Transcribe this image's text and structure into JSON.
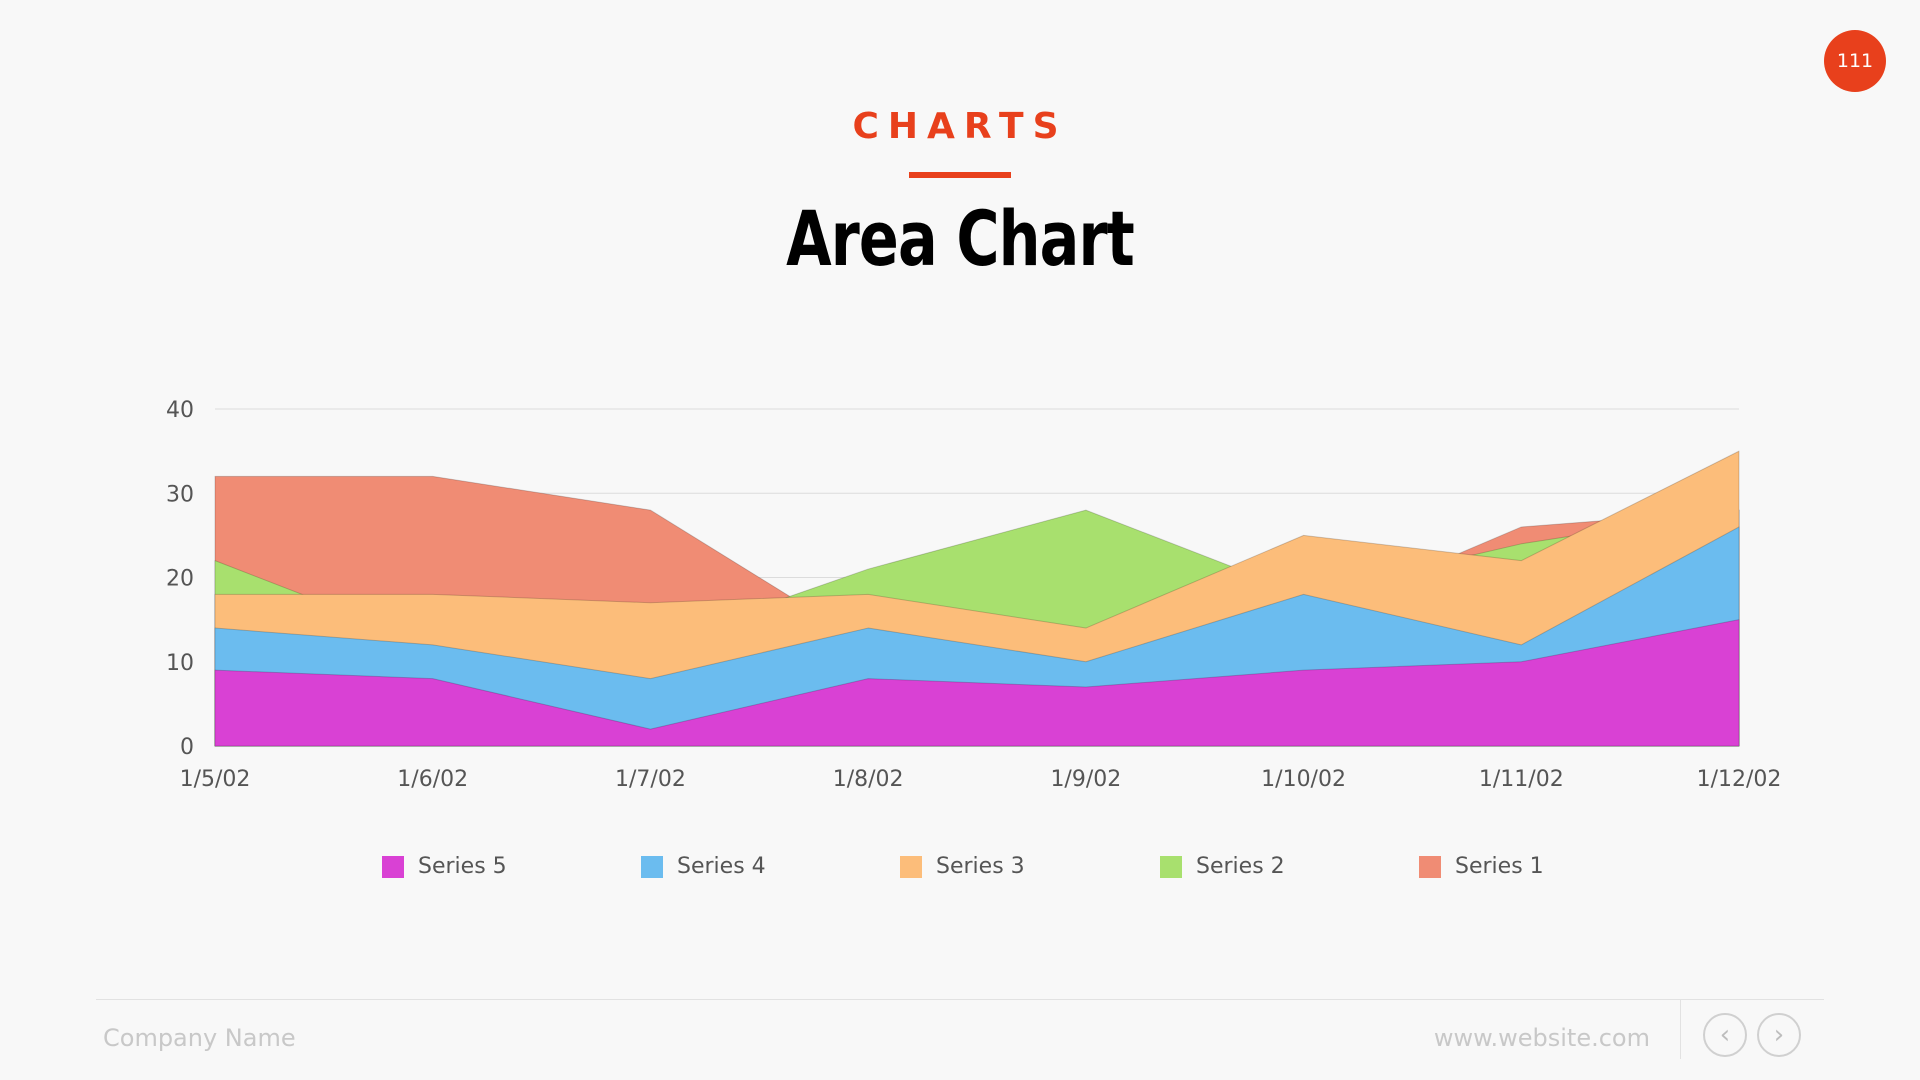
{
  "header": {
    "page_number": "111",
    "section": "CHARTS",
    "title": "Area Chart"
  },
  "footer": {
    "company": "Company Name",
    "website": "www.website.com",
    "prev_icon": "chevron-left-icon",
    "next_icon": "chevron-right-icon"
  },
  "colors": {
    "accent": "#e8401c",
    "series_5": "#d941d4",
    "series_4": "#6bbcef",
    "series_3": "#fcbd7a",
    "series_2": "#a8e06e",
    "series_1": "#f08c74"
  },
  "chart_data": {
    "type": "area",
    "stacked": false,
    "categories": [
      "1/5/02",
      "1/6/02",
      "1/7/02",
      "1/8/02",
      "1/9/02",
      "1/10/02",
      "1/11/02",
      "1/12/02"
    ],
    "ylim": [
      0,
      40
    ],
    "yticks": [
      "0",
      "10",
      "20",
      "30",
      "40"
    ],
    "grid": true,
    "legend_position": "bottom",
    "series": [
      {
        "name": "Series 1",
        "color": "#f08c74",
        "values": [
          32,
          32,
          28,
          12,
          12,
          15,
          26,
          28
        ]
      },
      {
        "name": "Series 2",
        "color": "#a8e06e",
        "values": [
          22,
          12,
          12,
          21,
          28,
          18,
          24,
          28
        ]
      },
      {
        "name": "Series 3",
        "color": "#fcbd7a",
        "values": [
          18,
          18,
          17,
          18,
          14,
          25,
          22,
          35
        ]
      },
      {
        "name": "Series 4",
        "color": "#6bbcef",
        "values": [
          14,
          12,
          8,
          14,
          10,
          18,
          12,
          26
        ]
      },
      {
        "name": "Series 5",
        "color": "#d941d4",
        "values": [
          9,
          8,
          2,
          8,
          7,
          9,
          10,
          15
        ]
      }
    ],
    "legend": [
      "Series 5",
      "Series 4",
      "Series 3",
      "Series 2",
      "Series 1"
    ]
  }
}
